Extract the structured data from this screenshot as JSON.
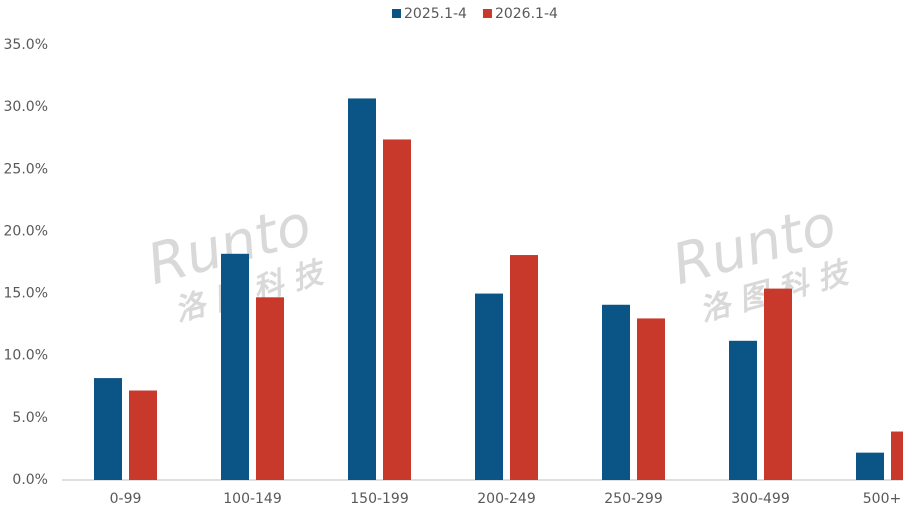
{
  "chart_data": {
    "type": "bar",
    "categories": [
      "0-99",
      "100-149",
      "150-199",
      "200-249",
      "250-299",
      "300-499",
      "500+"
    ],
    "series": [
      {
        "name": "2025.1-4",
        "color": "#0b5486",
        "values": [
          8.2,
          18.2,
          30.7,
          15.0,
          14.1,
          11.2,
          2.2
        ]
      },
      {
        "name": "2026.1-4",
        "color": "#c8392b",
        "values": [
          7.2,
          14.7,
          27.4,
          18.1,
          13.0,
          15.4,
          3.9
        ]
      }
    ],
    "ylim": [
      0,
      35
    ],
    "yticks": [
      {
        "value": 0,
        "label": "0.0%"
      },
      {
        "value": 5,
        "label": "5.0%"
      },
      {
        "value": 10,
        "label": "10.0%"
      },
      {
        "value": 15,
        "label": "15.0%"
      },
      {
        "value": 20,
        "label": "20.0%"
      },
      {
        "value": 25,
        "label": "25.0%"
      },
      {
        "value": 30,
        "label": "30.0%"
      },
      {
        "value": 35,
        "label": "35.0%"
      }
    ],
    "grid": false,
    "legend": "top",
    "watermark": {
      "brand": "Runto",
      "name": "洛 图 科 技"
    }
  }
}
